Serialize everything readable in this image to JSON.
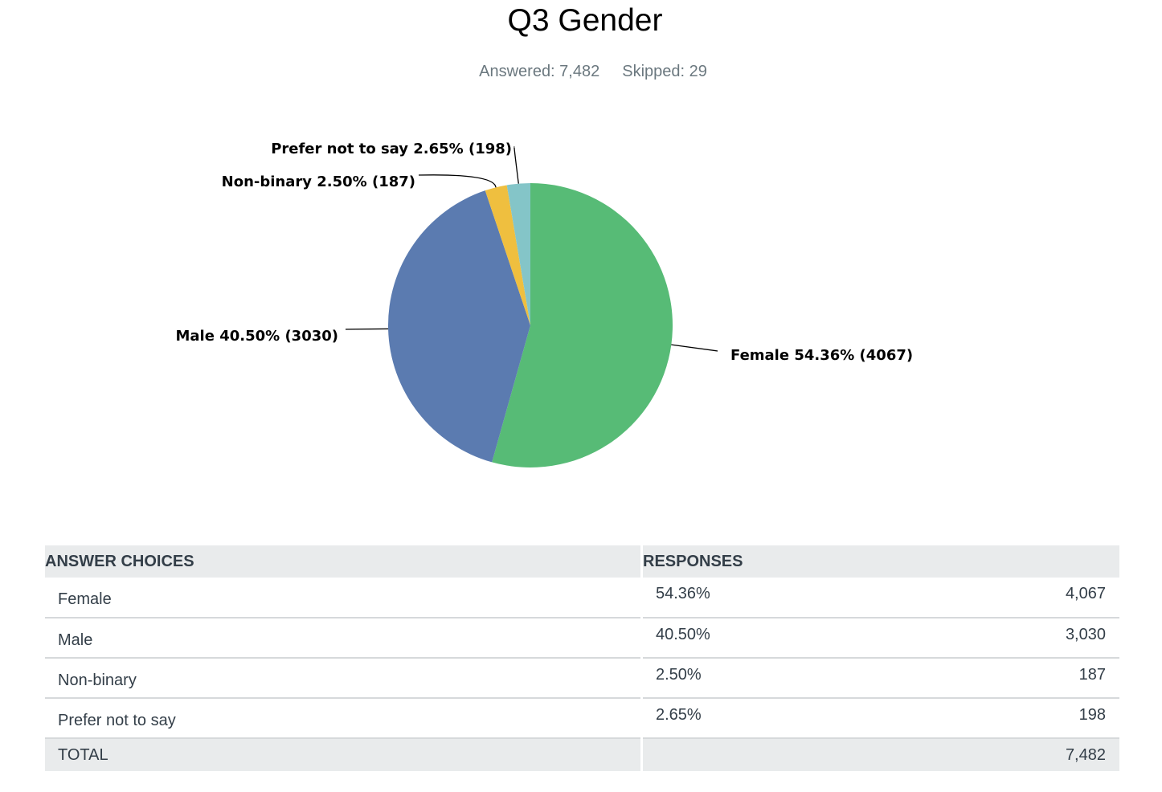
{
  "page": {
    "title": "Q3 Gender",
    "answered": "Answered: 7,482",
    "skipped": "Skipped: 29"
  },
  "chart_data": {
    "type": "pie",
    "title": "Q3 Gender",
    "slices": [
      {
        "name": "Female",
        "percent": 54.36,
        "count": 4067,
        "color": "#57bb76",
        "label": "Female 54.36% (4067)"
      },
      {
        "name": "Male",
        "percent": 40.5,
        "count": 3030,
        "color": "#5b7bb0",
        "label": "Male 40.50% (3030)"
      },
      {
        "name": "Non-binary",
        "percent": 2.5,
        "count": 187,
        "color": "#efbf3f",
        "label": "Non-binary 2.50% (187)"
      },
      {
        "name": "Prefer not to say",
        "percent": 2.65,
        "count": 198,
        "color": "#84c5c8",
        "label": "Prefer not to say 2.65% (198)"
      }
    ]
  },
  "table": {
    "headers": [
      "ANSWER CHOICES",
      "RESPONSES"
    ],
    "rows": [
      {
        "choice": "Female",
        "percent": "54.36%",
        "count": "4,067"
      },
      {
        "choice": "Male",
        "percent": "40.50%",
        "count": "3,030"
      },
      {
        "choice": "Non-binary",
        "percent": "2.50%",
        "count": "187"
      },
      {
        "choice": "Prefer not to say",
        "percent": "2.65%",
        "count": "198"
      }
    ],
    "total_label": "TOTAL",
    "total_count": "7,482"
  }
}
